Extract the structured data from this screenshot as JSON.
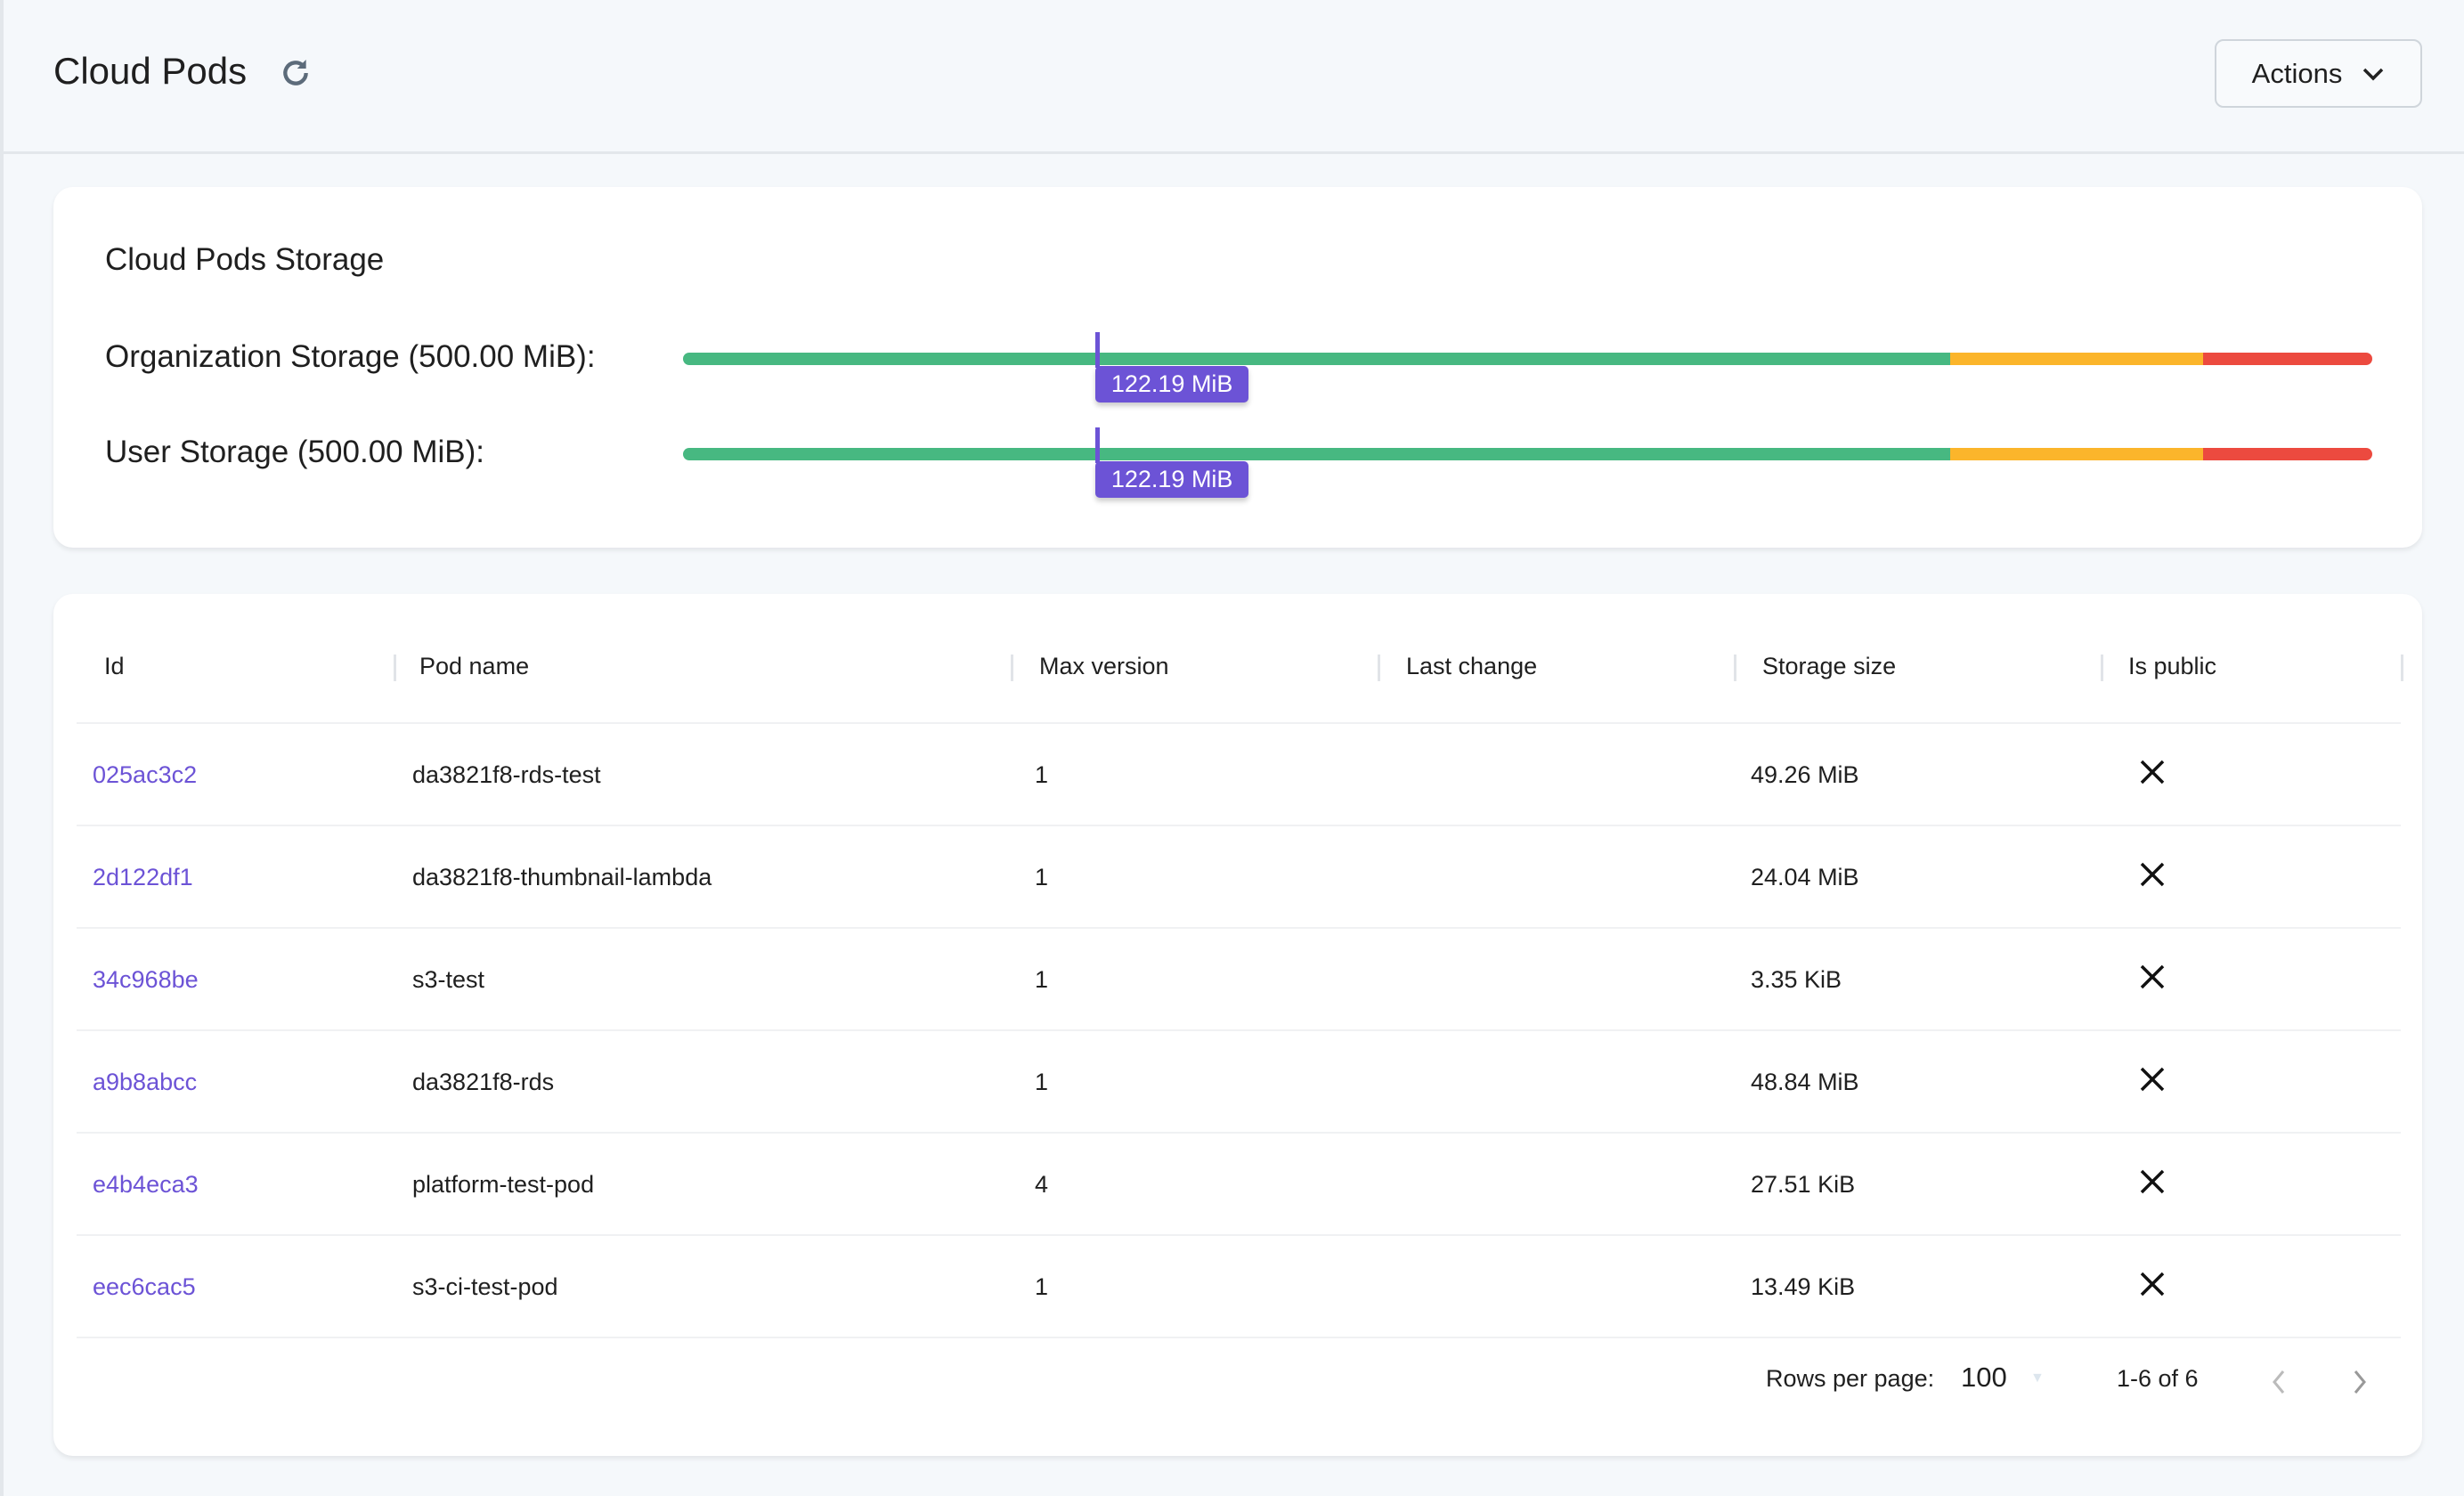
{
  "header": {
    "title": "Cloud Pods",
    "refresh_icon": "refresh-icon",
    "actions_label": "Actions"
  },
  "storage": {
    "title": "Cloud Pods Storage",
    "thresholds": {
      "green_until_percent": 75,
      "orange_until_percent": 90
    },
    "colors": {
      "green": "#47b881",
      "orange": "#fbb52b",
      "red": "#ec4a3f",
      "accent": "#6c53d6"
    },
    "items": [
      {
        "label": "Organization Storage (500.00 MiB):",
        "used": "122.19 MiB",
        "used_percent": 24.4
      },
      {
        "label": "User Storage (500.00 MiB):",
        "used": "122.19 MiB",
        "used_percent": 24.4
      }
    ]
  },
  "table": {
    "columns": [
      "Id",
      "Pod name",
      "Max version",
      "Last change",
      "Storage size",
      "Is public"
    ],
    "rows": [
      {
        "id": "025ac3c2",
        "name": "da3821f8-rds-test",
        "max": "1",
        "last": "",
        "size": "49.26 MiB",
        "public": false
      },
      {
        "id": "2d122df1",
        "name": "da3821f8-thumbnail-lambda",
        "max": "1",
        "last": "",
        "size": "24.04 MiB",
        "public": false
      },
      {
        "id": "34c968be",
        "name": "s3-test",
        "max": "1",
        "last": "",
        "size": "3.35 KiB",
        "public": false
      },
      {
        "id": "a9b8abcc",
        "name": "da3821f8-rds",
        "max": "1",
        "last": "",
        "size": "48.84 MiB",
        "public": false
      },
      {
        "id": "e4b4eca3",
        "name": "platform-test-pod",
        "max": "4",
        "last": "",
        "size": "27.51 KiB",
        "public": false
      },
      {
        "id": "eec6cac5",
        "name": "s3-ci-test-pod",
        "max": "1",
        "last": "",
        "size": "13.49 KiB",
        "public": false
      }
    ]
  },
  "pagination": {
    "rows_per_page_label": "Rows per page:",
    "rows_per_page": "100",
    "range": "1-6 of 6"
  }
}
